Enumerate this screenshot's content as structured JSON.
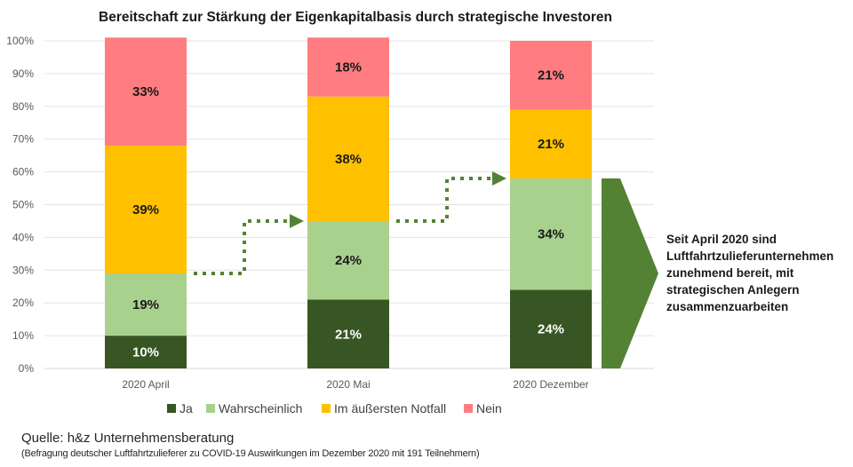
{
  "chart_data": {
    "type": "bar",
    "stacked": true,
    "title": "Bereitschaft zur Stärkung der Eigenkapitalbasis  durch strategische Investoren",
    "xlabel": "",
    "ylabel": "",
    "ylim": [
      0,
      100
    ],
    "y_ticks": [
      "0%",
      "10%",
      "20%",
      "30%",
      "40%",
      "50%",
      "60%",
      "70%",
      "80%",
      "90%",
      "100%"
    ],
    "grid": true,
    "legend_position": "bottom",
    "categories": [
      "2020 April",
      "2020 Mai",
      "2020 Dezember"
    ],
    "series": [
      {
        "name": "Ja",
        "color": "#375623",
        "label_color": "#ffffff",
        "values": [
          10,
          21,
          24
        ]
      },
      {
        "name": "Wahrscheinlich",
        "color": "#a9d18e",
        "label_color": "#1a1a1a",
        "values": [
          19,
          24,
          34
        ]
      },
      {
        "name": "Im äußersten Notfall",
        "color": "#ffc000",
        "label_color": "#1a1a1a",
        "values": [
          39,
          38,
          21
        ]
      },
      {
        "name": "Nein",
        "color": "#ff7c80",
        "label_color": "#1a1a1a",
        "values": [
          33,
          18,
          21
        ]
      }
    ],
    "data_labels": [
      [
        "10%",
        "21%",
        "24%"
      ],
      [
        "19%",
        "24%",
        "34%"
      ],
      [
        "39%",
        "38%",
        "21%"
      ],
      [
        "33%",
        "18%",
        "21%"
      ]
    ],
    "annotations": {
      "trend_arrows": "dotted step arrows connecting the top of 'Ja + Wahrscheinlich' between bars",
      "arrow_color": "#548235",
      "callout_text_lines": [
        "Seit April 2020 sind",
        "Luftfahrtzulieferunternehmen",
        "zunehmend bereit, mit",
        "strategischen Anlegern",
        "zusammenzuarbeiten"
      ]
    }
  },
  "source": {
    "main": "Quelle: h&z Unternehmensberatung",
    "sub": "(Befragung deutscher Luftfahrtzulieferer zu COVID-19 Auswirkungen im Dezember 2020 mit 191  Teilnehmern)"
  }
}
